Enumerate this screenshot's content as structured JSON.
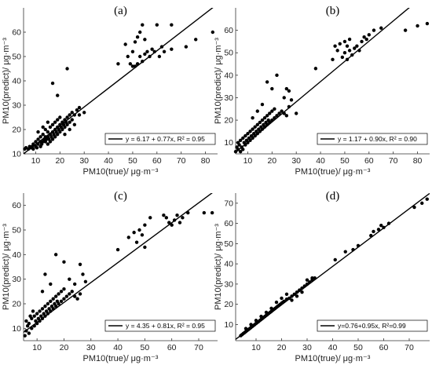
{
  "chart_data": [
    {
      "type": "scatter",
      "panel_label": "(a)",
      "xlabel": "PM10(true)/ μg·m⁻³",
      "ylabel": "PM10(predict)/ μg·m⁻³",
      "xlim": [
        5,
        85
      ],
      "ylim": [
        10,
        70
      ],
      "xticks": [
        10,
        20,
        30,
        40,
        50,
        60,
        70,
        80
      ],
      "yticks": [
        10,
        20,
        30,
        40,
        50,
        60
      ],
      "legend": "y = 6.17 + 0.77x, R² = 0.95",
      "legend_position": "bottom-right",
      "fit": {
        "intercept": 6.17,
        "slope": 0.77
      },
      "points": [
        [
          5.5,
          12
        ],
        [
          6,
          12.5
        ],
        [
          7,
          12
        ],
        [
          7.5,
          13
        ],
        [
          8,
          12.5
        ],
        [
          8.5,
          13
        ],
        [
          9,
          12
        ],
        [
          9,
          14
        ],
        [
          10,
          13
        ],
        [
          10,
          15
        ],
        [
          10.5,
          12.5
        ],
        [
          11,
          14
        ],
        [
          11,
          16
        ],
        [
          12,
          13
        ],
        [
          12,
          15
        ],
        [
          12,
          17
        ],
        [
          12.5,
          14
        ],
        [
          13,
          15
        ],
        [
          13,
          18
        ],
        [
          13.5,
          16
        ],
        [
          14,
          15
        ],
        [
          14,
          17
        ],
        [
          14,
          20
        ],
        [
          14.5,
          16
        ],
        [
          15,
          14
        ],
        [
          15,
          17
        ],
        [
          15,
          19
        ],
        [
          15.5,
          16
        ],
        [
          16,
          15
        ],
        [
          16,
          18
        ],
        [
          16,
          21
        ],
        [
          16.5,
          17
        ],
        [
          17,
          16
        ],
        [
          17,
          19
        ],
        [
          17,
          22
        ],
        [
          17.5,
          18
        ],
        [
          18,
          17
        ],
        [
          18,
          20
        ],
        [
          18,
          23
        ],
        [
          18.5,
          19
        ],
        [
          19,
          18
        ],
        [
          19,
          21
        ],
        [
          19,
          24
        ],
        [
          19.5,
          20
        ],
        [
          20,
          19
        ],
        [
          20,
          22
        ],
        [
          20,
          25
        ],
        [
          20.5,
          21
        ],
        [
          21,
          20
        ],
        [
          21,
          23
        ],
        [
          21.5,
          22
        ],
        [
          22,
          21
        ],
        [
          22,
          24
        ],
        [
          22.5,
          23
        ],
        [
          23,
          22
        ],
        [
          23,
          25
        ],
        [
          24,
          23
        ],
        [
          24,
          26
        ],
        [
          25,
          24
        ],
        [
          25,
          27
        ],
        [
          26,
          26
        ],
        [
          27,
          28
        ],
        [
          28,
          29
        ],
        [
          17,
          39
        ],
        [
          19,
          34
        ],
        [
          23,
          45
        ],
        [
          11,
          19
        ],
        [
          13,
          21
        ],
        [
          15,
          23
        ],
        [
          22,
          18
        ],
        [
          24,
          20
        ],
        [
          26,
          22
        ],
        [
          28,
          26
        ],
        [
          30,
          27
        ],
        [
          44,
          47
        ],
        [
          47,
          55
        ],
        [
          48,
          50
        ],
        [
          49,
          47
        ],
        [
          50,
          46
        ],
        [
          50,
          52
        ],
        [
          51,
          46
        ],
        [
          51,
          56
        ],
        [
          52,
          47
        ],
        [
          52,
          58
        ],
        [
          53,
          50
        ],
        [
          53,
          60
        ],
        [
          54,
          48
        ],
        [
          54,
          63
        ],
        [
          55,
          51
        ],
        [
          55,
          57
        ],
        [
          56,
          52
        ],
        [
          57,
          50
        ],
        [
          58,
          53
        ],
        [
          59,
          52
        ],
        [
          60,
          63
        ],
        [
          61,
          50
        ],
        [
          62,
          54
        ],
        [
          63,
          52
        ],
        [
          66,
          53
        ],
        [
          66,
          63
        ],
        [
          72,
          54
        ],
        [
          76,
          57
        ],
        [
          83,
          60
        ]
      ]
    },
    {
      "type": "scatter",
      "panel_label": "(b)",
      "xlabel": "PM10(true)/ μg·m⁻³",
      "ylabel": "PM10(predict)/ μg·m⁻³",
      "xlim": [
        5,
        85
      ],
      "ylim": [
        5,
        70
      ],
      "xticks": [
        10,
        20,
        30,
        40,
        50,
        60,
        70,
        80
      ],
      "yticks": [
        10,
        20,
        30,
        40,
        50,
        60
      ],
      "legend": "y = 1.17 + 0.90x, R² = 0.90",
      "legend_position": "bottom-right",
      "fit": {
        "intercept": 1.17,
        "slope": 0.9
      },
      "points": [
        [
          5,
          6
        ],
        [
          5.5,
          8
        ],
        [
          6,
          7
        ],
        [
          6,
          10
        ],
        [
          6.5,
          9
        ],
        [
          7,
          6
        ],
        [
          7,
          11
        ],
        [
          7.5,
          8
        ],
        [
          8,
          7
        ],
        [
          8,
          12
        ],
        [
          8.5,
          10
        ],
        [
          9,
          9
        ],
        [
          9,
          13
        ],
        [
          9.5,
          11
        ],
        [
          10,
          10
        ],
        [
          10,
          14
        ],
        [
          10.5,
          12
        ],
        [
          11,
          11
        ],
        [
          11,
          15
        ],
        [
          11.5,
          13
        ],
        [
          12,
          12
        ],
        [
          12,
          16
        ],
        [
          12.5,
          14
        ],
        [
          13,
          13
        ],
        [
          13,
          17
        ],
        [
          13.5,
          15
        ],
        [
          14,
          14
        ],
        [
          14,
          18
        ],
        [
          14.5,
          16
        ],
        [
          15,
          15
        ],
        [
          15,
          19
        ],
        [
          15.5,
          17
        ],
        [
          16,
          16
        ],
        [
          16,
          20
        ],
        [
          16.5,
          18
        ],
        [
          17,
          17
        ],
        [
          17,
          21
        ],
        [
          17.5,
          19
        ],
        [
          18,
          18
        ],
        [
          18,
          22
        ],
        [
          18.5,
          20
        ],
        [
          19,
          19
        ],
        [
          19,
          23
        ],
        [
          20,
          20
        ],
        [
          20,
          24
        ],
        [
          21,
          21
        ],
        [
          21,
          25
        ],
        [
          22,
          22
        ],
        [
          23,
          23
        ],
        [
          24,
          24
        ],
        [
          25,
          23
        ],
        [
          26,
          22
        ],
        [
          27,
          26
        ],
        [
          28,
          29
        ],
        [
          30,
          23
        ],
        [
          18,
          37
        ],
        [
          20,
          34
        ],
        [
          22,
          40
        ],
        [
          25,
          30
        ],
        [
          26,
          34
        ],
        [
          27,
          33
        ],
        [
          12,
          21
        ],
        [
          14,
          24
        ],
        [
          16,
          27
        ],
        [
          38,
          43
        ],
        [
          45,
          47
        ],
        [
          46,
          53
        ],
        [
          47,
          51
        ],
        [
          48,
          54
        ],
        [
          49,
          48
        ],
        [
          50,
          50
        ],
        [
          50,
          55
        ],
        [
          51,
          47
        ],
        [
          51,
          53
        ],
        [
          52,
          51
        ],
        [
          52,
          56
        ],
        [
          53,
          49
        ],
        [
          54,
          52
        ],
        [
          55,
          53
        ],
        [
          56,
          51
        ],
        [
          57,
          55
        ],
        [
          58,
          57
        ],
        [
          59,
          56
        ],
        [
          60,
          58
        ],
        [
          62,
          60
        ],
        [
          65,
          61
        ],
        [
          75,
          60
        ],
        [
          80,
          62
        ],
        [
          84,
          63
        ]
      ]
    },
    {
      "type": "scatter",
      "panel_label": "(c)",
      "xlabel": "PM10(true)/ μg·m⁻³",
      "ylabel": "PM10(predict)/ μg·m⁻³",
      "xlim": [
        5,
        77
      ],
      "ylim": [
        5,
        65
      ],
      "xticks": [
        10,
        20,
        30,
        40,
        50,
        60,
        70
      ],
      "yticks": [
        10,
        20,
        30,
        40,
        50,
        60
      ],
      "legend": "y = 4.35 + 0.81x, R² = 0.95",
      "legend_position": "bottom-right",
      "fit": {
        "intercept": 4.35,
        "slope": 0.81
      },
      "points": [
        [
          5.5,
          7
        ],
        [
          6,
          9
        ],
        [
          6,
          13
        ],
        [
          6.5,
          11
        ],
        [
          7,
          8
        ],
        [
          7,
          12
        ],
        [
          7.5,
          15
        ],
        [
          8,
          10
        ],
        [
          8,
          14
        ],
        [
          8.5,
          17
        ],
        [
          9,
          11
        ],
        [
          9,
          15
        ],
        [
          9.5,
          13
        ],
        [
          10,
          12
        ],
        [
          10,
          16
        ],
        [
          10.5,
          14
        ],
        [
          11,
          13
        ],
        [
          11,
          17
        ],
        [
          11.5,
          15
        ],
        [
          12,
          14
        ],
        [
          12,
          18
        ],
        [
          12.5,
          16
        ],
        [
          13,
          15
        ],
        [
          13,
          19
        ],
        [
          13.5,
          17
        ],
        [
          14,
          16
        ],
        [
          14,
          20
        ],
        [
          14.5,
          18
        ],
        [
          15,
          17
        ],
        [
          15,
          21
        ],
        [
          15.5,
          19
        ],
        [
          16,
          18
        ],
        [
          16,
          22
        ],
        [
          16.5,
          20
        ],
        [
          17,
          19
        ],
        [
          17,
          23
        ],
        [
          17.5,
          21
        ],
        [
          18,
          20
        ],
        [
          18,
          24
        ],
        [
          19,
          21
        ],
        [
          19,
          25
        ],
        [
          20,
          22
        ],
        [
          20,
          26
        ],
        [
          21,
          23
        ],
        [
          22,
          24
        ],
        [
          23,
          25
        ],
        [
          24,
          23
        ],
        [
          25,
          22
        ],
        [
          26,
          24
        ],
        [
          27,
          32
        ],
        [
          28,
          29
        ],
        [
          17,
          40
        ],
        [
          20,
          37
        ],
        [
          13,
          32
        ],
        [
          15,
          28
        ],
        [
          12,
          25
        ],
        [
          22,
          30
        ],
        [
          24,
          28
        ],
        [
          26,
          36
        ],
        [
          40,
          42
        ],
        [
          44,
          47
        ],
        [
          46,
          49
        ],
        [
          47,
          45
        ],
        [
          48,
          50
        ],
        [
          49,
          48
        ],
        [
          50,
          43
        ],
        [
          50,
          52
        ],
        [
          52,
          55
        ],
        [
          57,
          56
        ],
        [
          58,
          55
        ],
        [
          59,
          53
        ],
        [
          60,
          52
        ],
        [
          61,
          54
        ],
        [
          62,
          56
        ],
        [
          63,
          53
        ],
        [
          64,
          55
        ],
        [
          66,
          57
        ],
        [
          72,
          57
        ],
        [
          75,
          57
        ]
      ]
    },
    {
      "type": "scatter",
      "panel_label": "(d)",
      "xlabel": "PM10(true)/ μg·m⁻³",
      "ylabel": "PM10(predict)/ μg·m⁻³",
      "xlim": [
        2,
        78
      ],
      "ylim": [
        2,
        75
      ],
      "xticks": [
        10,
        20,
        30,
        40,
        50,
        60,
        70
      ],
      "yticks": [
        10,
        20,
        30,
        40,
        50,
        60,
        70
      ],
      "legend": "y=0.76+0.95x, R²=0.99",
      "legend_position": "bottom-right",
      "fit": {
        "intercept": 0.76,
        "slope": 0.95
      },
      "points": [
        [
          4,
          4.5
        ],
        [
          4.5,
          5
        ],
        [
          5,
          5.5
        ],
        [
          5.5,
          6
        ],
        [
          6,
          6.5
        ],
        [
          6.5,
          7
        ],
        [
          7,
          7.5
        ],
        [
          7.5,
          8
        ],
        [
          8,
          8.5
        ],
        [
          8.5,
          9
        ],
        [
          9,
          9.5
        ],
        [
          9.5,
          10
        ],
        [
          10,
          10.5
        ],
        [
          10.5,
          11
        ],
        [
          11,
          11.5
        ],
        [
          11.5,
          12
        ],
        [
          12,
          12.5
        ],
        [
          12.5,
          13
        ],
        [
          13,
          13.5
        ],
        [
          13.5,
          14
        ],
        [
          14,
          14.5
        ],
        [
          14.5,
          15
        ],
        [
          15,
          15.5
        ],
        [
          15.5,
          16
        ],
        [
          16,
          16.5
        ],
        [
          16.5,
          17
        ],
        [
          17,
          17.5
        ],
        [
          17.5,
          18
        ],
        [
          18,
          18.5
        ],
        [
          18.5,
          19
        ],
        [
          19,
          19.5
        ],
        [
          19.5,
          20
        ],
        [
          20,
          20.5
        ],
        [
          20.5,
          21
        ],
        [
          21,
          21.5
        ],
        [
          22,
          22.5
        ],
        [
          23,
          23
        ],
        [
          24,
          24
        ],
        [
          25,
          25
        ],
        [
          26,
          26
        ],
        [
          27,
          27
        ],
        [
          28,
          28
        ],
        [
          29,
          29
        ],
        [
          30,
          30
        ],
        [
          31,
          31
        ],
        [
          32,
          32
        ],
        [
          33,
          33
        ],
        [
          6,
          8
        ],
        [
          8,
          10
        ],
        [
          10,
          12
        ],
        [
          12,
          14
        ],
        [
          14,
          16
        ],
        [
          16,
          18
        ],
        [
          18,
          21
        ],
        [
          20,
          23
        ],
        [
          22,
          25
        ],
        [
          24,
          22
        ],
        [
          26,
          24
        ],
        [
          28,
          26
        ],
        [
          30,
          32
        ],
        [
          32,
          33
        ],
        [
          41,
          42
        ],
        [
          45,
          46
        ],
        [
          48,
          47
        ],
        [
          50,
          49
        ],
        [
          55,
          54
        ],
        [
          56,
          56
        ],
        [
          58,
          57
        ],
        [
          59,
          59
        ],
        [
          60,
          58
        ],
        [
          62,
          60
        ],
        [
          72,
          68
        ],
        [
          75,
          70
        ],
        [
          77,
          72
        ]
      ]
    }
  ]
}
